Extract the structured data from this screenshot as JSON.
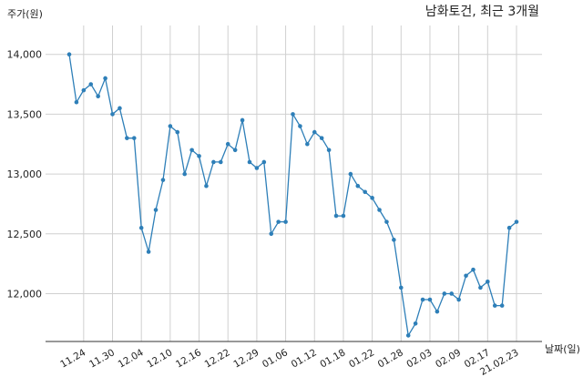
{
  "chart_data": {
    "type": "line",
    "title": "남화토건, 최근 3개월",
    "ylabel": "주가(원)",
    "xlabel": "날짜(일)",
    "ylim": [
      11600,
      14150
    ],
    "yticks": [
      12000,
      12500,
      13000,
      13500,
      14000
    ],
    "ytick_labels": [
      "12,000",
      "12,500",
      "13,000",
      "13,500",
      "14,000"
    ],
    "xtick_labels": [
      "11.24",
      "11.30",
      "12.04",
      "12.10",
      "12.16",
      "12.22",
      "12.29",
      "01.06",
      "01.12",
      "01.18",
      "01.22",
      "01.28",
      "02.03",
      "02.09",
      "02.17",
      "21.02.23"
    ],
    "xtick_positions": [
      2,
      6,
      10,
      14,
      18,
      22,
      26,
      30,
      34,
      38,
      42,
      46,
      50,
      54,
      58,
      62
    ],
    "grid": true,
    "color": "#2e7fb8",
    "series": [
      {
        "values": [
          14000,
          13600,
          13700,
          13750,
          13650,
          13800,
          13500,
          13550,
          13300,
          13300,
          12550,
          12350,
          12700,
          12950,
          13400,
          13350,
          13000,
          13200,
          13150,
          12900,
          13100,
          13100,
          13250,
          13200,
          13450,
          13100,
          13050,
          13100,
          12500,
          12600,
          12600,
          13500,
          13400,
          13250,
          13350,
          13300,
          13200,
          12650,
          12650,
          13000,
          12900,
          12850,
          12800,
          12700,
          12600,
          12450,
          12050,
          11650,
          11750,
          11950,
          11950,
          11850,
          12000,
          12000,
          11950,
          12150,
          12200,
          12050,
          12100,
          11900,
          11900,
          12550,
          12600
        ]
      }
    ]
  }
}
